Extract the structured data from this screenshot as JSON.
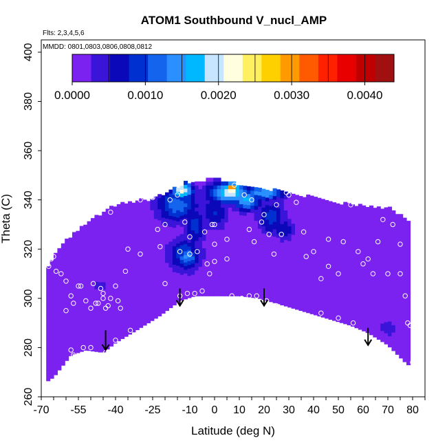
{
  "chart_data": {
    "type": "heatmap",
    "title": "ATOM1 Southbound V_nucl_AMP",
    "annotations": {
      "flights": "Flts: 2,3,4,5,6",
      "dates": "MMDD: 0801,0803,0806,0808,0812"
    },
    "xlabel": "Latitude (deg N)",
    "ylabel": "Theta (C)",
    "xlim": [
      -70,
      85
    ],
    "ylim": [
      260,
      405
    ],
    "x_ticks_labeled": [
      -70,
      -55,
      -40,
      -25,
      -10,
      0,
      10,
      20,
      30,
      40,
      50,
      60,
      70,
      80
    ],
    "x_ticks_all": [
      -70,
      -65,
      -60,
      -55,
      -50,
      -45,
      -40,
      -35,
      -30,
      -25,
      -20,
      -15,
      -10,
      -5,
      0,
      5,
      10,
      15,
      20,
      25,
      30,
      35,
      40,
      45,
      50,
      55,
      60,
      65,
      70,
      75,
      80,
      85
    ],
    "y_ticks": [
      260,
      280,
      300,
      320,
      340,
      360,
      380,
      400
    ],
    "colorbar": {
      "range": [
        0,
        0.0044
      ],
      "tick_values": [
        0,
        0.001,
        0.002,
        0.003,
        0.004
      ],
      "tick_labels": [
        "0.0000",
        "0.0010",
        "0.0020",
        "0.0030",
        "0.0040"
      ],
      "boundaries": [
        0,
        0.0005,
        0.001,
        0.0015,
        0.002,
        0.0025,
        0.003,
        0.0035,
        0.004,
        0.0044
      ],
      "colors": [
        "#7b22f0",
        "#3a14d8",
        "#0a08b8",
        "#0030d0",
        "#1464ee",
        "#2a90ff",
        "#00b8ff",
        "#c6e6ff",
        "#ffffe0",
        "#fff060",
        "#ffd000",
        "#ff9a00",
        "#ff5a00",
        "#ff2000",
        "#e80000",
        "#c00000",
        "#a01010"
      ],
      "position": "top"
    },
    "background_value": 0.0001,
    "envelope": {
      "lower": [
        [
          -68,
          266
        ],
        [
          -65,
          268
        ],
        [
          -58,
          277
        ],
        [
          -52,
          279
        ],
        [
          -45,
          278
        ],
        [
          -40,
          282
        ],
        [
          -30,
          288
        ],
        [
          -22,
          293
        ],
        [
          -14,
          299
        ],
        [
          -8,
          301
        ],
        [
          0,
          301
        ],
        [
          10,
          301
        ],
        [
          18,
          300
        ],
        [
          25,
          298
        ],
        [
          35,
          295
        ],
        [
          45,
          292
        ],
        [
          55,
          289
        ],
        [
          62,
          286
        ],
        [
          70,
          281
        ],
        [
          78,
          273
        ]
      ],
      "upper": [
        [
          -68,
          312
        ],
        [
          -62,
          322
        ],
        [
          -55,
          328
        ],
        [
          -48,
          333
        ],
        [
          -40,
          338
        ],
        [
          -30,
          340
        ],
        [
          -25,
          340
        ],
        [
          -20,
          343
        ],
        [
          -12,
          347
        ],
        [
          -5,
          348
        ],
        [
          0,
          349
        ],
        [
          8,
          347
        ],
        [
          15,
          345
        ],
        [
          25,
          344
        ],
        [
          30,
          343
        ],
        [
          45,
          340
        ],
        [
          55,
          338
        ],
        [
          70,
          337
        ],
        [
          78,
          332
        ]
      ]
    },
    "features": [
      {
        "x": -15,
        "y": 338,
        "sx": 6,
        "sy": 5,
        "value": 0.0012
      },
      {
        "x": -13,
        "y": 344,
        "sx": 3,
        "sy": 2.5,
        "value": 0.0022
      },
      {
        "x": -8,
        "y": 330,
        "sx": 3,
        "sy": 6,
        "value": 0.0009
      },
      {
        "x": -12,
        "y": 318,
        "sx": 5,
        "sy": 5,
        "value": 0.001
      },
      {
        "x": -11,
        "y": 317,
        "sx": 3,
        "sy": 3,
        "value": 0.0014
      },
      {
        "x": 6,
        "y": 343,
        "sx": 6,
        "sy": 3,
        "value": 0.002
      },
      {
        "x": 7,
        "y": 345,
        "sx": 2,
        "sy": 1.5,
        "value": 0.0032
      },
      {
        "x": 13,
        "y": 340,
        "sx": 4,
        "sy": 3,
        "value": 0.0016
      },
      {
        "x": 20,
        "y": 343,
        "sx": 6,
        "sy": 2,
        "value": 0.0016
      },
      {
        "x": 0,
        "y": 335,
        "sx": 4,
        "sy": 5,
        "value": 0.0008
      },
      {
        "x": 23,
        "y": 333,
        "sx": 4,
        "sy": 5,
        "value": 0.0009
      },
      {
        "x": 28,
        "y": 328,
        "sx": 3,
        "sy": 3,
        "value": 0.0008
      },
      {
        "x": -46,
        "y": 305,
        "sx": 3,
        "sy": 2,
        "value": 0.0004
      },
      {
        "x": 70,
        "y": 288,
        "sx": 5,
        "sy": 5,
        "value": 0.0003
      },
      {
        "x": 35,
        "y": 305,
        "sx": 5,
        "sy": 5,
        "value": 0.0002
      }
    ],
    "sample_points": [
      [
        -67,
        313
      ],
      [
        -66,
        316
      ],
      [
        -65,
        317
      ],
      [
        -64,
        311
      ],
      [
        -62,
        310
      ],
      [
        -60,
        307
      ],
      [
        -58,
        301
      ],
      [
        -57,
        298
      ],
      [
        -55,
        305
      ],
      [
        -54,
        305
      ],
      [
        -52,
        299
      ],
      [
        -50,
        296
      ],
      [
        -49,
        306
      ],
      [
        -48,
        298
      ],
      [
        -47,
        298
      ],
      [
        -46,
        304
      ],
      [
        -45,
        302
      ],
      [
        -45,
        300
      ],
      [
        -44,
        296
      ],
      [
        -43,
        297
      ],
      [
        -42,
        300
      ],
      [
        -39,
        299
      ],
      [
        -38,
        296
      ],
      [
        -60,
        295
      ],
      [
        -57,
        277
      ],
      [
        -53,
        280
      ],
      [
        -50,
        280
      ],
      [
        -44,
        278
      ],
      [
        -40,
        283
      ],
      [
        -34,
        287
      ],
      [
        -30,
        318
      ],
      [
        -36,
        311
      ],
      [
        -40,
        305
      ],
      [
        -42,
        335
      ],
      [
        -38,
        342
      ],
      [
        -30,
        340
      ],
      [
        -25,
        341
      ],
      [
        -23,
        328
      ],
      [
        -22,
        321
      ],
      [
        -20,
        306
      ],
      [
        -18,
        340
      ],
      [
        -12,
        331
      ],
      [
        -14,
        319
      ],
      [
        -10,
        318
      ],
      [
        -7,
        319
      ],
      [
        -4,
        327
      ],
      [
        -1,
        330
      ],
      [
        0,
        330
      ],
      [
        0,
        322
      ],
      [
        0,
        315
      ],
      [
        -2,
        310
      ],
      [
        -5,
        303
      ],
      [
        -8,
        302
      ],
      [
        -11,
        302
      ],
      [
        -14,
        301
      ],
      [
        -3,
        314
      ],
      [
        5,
        316
      ],
      [
        5,
        324
      ],
      [
        8,
        346
      ],
      [
        10,
        349
      ],
      [
        12,
        342
      ],
      [
        14,
        328
      ],
      [
        16,
        323
      ],
      [
        19,
        331
      ],
      [
        22,
        326
      ],
      [
        24,
        318
      ],
      [
        27,
        326
      ],
      [
        29,
        343
      ],
      [
        33,
        339
      ],
      [
        36,
        327
      ],
      [
        40,
        319
      ],
      [
        43,
        308
      ],
      [
        46,
        324
      ],
      [
        50,
        310
      ],
      [
        52,
        323
      ],
      [
        55,
        338
      ],
      [
        58,
        319
      ],
      [
        60,
        314
      ],
      [
        62,
        316
      ],
      [
        64,
        310
      ],
      [
        66,
        323
      ],
      [
        68,
        332
      ],
      [
        70,
        310
      ],
      [
        72,
        330
      ],
      [
        75,
        322
      ],
      [
        77,
        301
      ],
      [
        78,
        290
      ],
      [
        79,
        289
      ],
      [
        80,
        274
      ],
      [
        75,
        310
      ],
      [
        46,
        313
      ],
      [
        37,
        317
      ],
      [
        0,
        299
      ],
      [
        7,
        301
      ],
      [
        11,
        300
      ],
      [
        14,
        301
      ],
      [
        17,
        301
      ],
      [
        21,
        299
      ],
      [
        25,
        297
      ],
      [
        30,
        294
      ],
      [
        36,
        293
      ],
      [
        43,
        294
      ],
      [
        50,
        292
      ],
      [
        56,
        290
      ],
      [
        -3,
        352
      ],
      [
        -15,
        342
      ],
      [
        -10,
        325
      ],
      [
        -20,
        330
      ],
      [
        30,
        342
      ],
      [
        15,
        340
      ],
      [
        20,
        334
      ],
      [
        25,
        338
      ],
      [
        -35,
        320
      ],
      [
        -58,
        279
      ]
    ],
    "arrows": [
      {
        "x": -44,
        "y_tail": 287,
        "y_head": 279
      },
      {
        "x": -14,
        "y_tail": 304,
        "y_head": 297
      },
      {
        "x": 20,
        "y_tail": 304,
        "y_head": 297
      },
      {
        "x": 62,
        "y_tail": 288,
        "y_head": 281
      }
    ]
  }
}
